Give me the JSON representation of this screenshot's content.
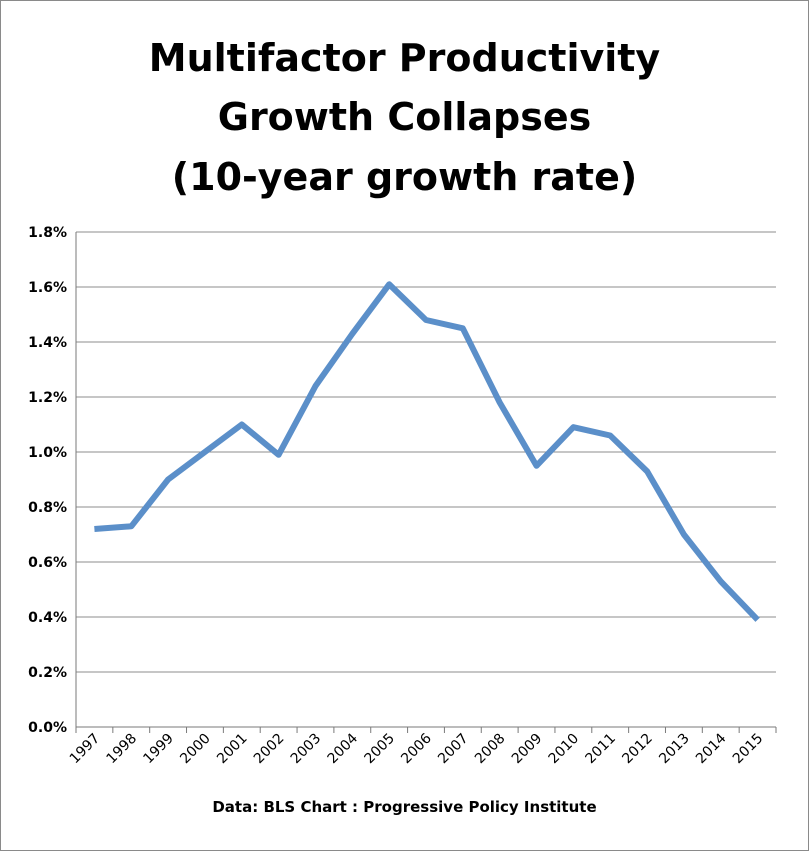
{
  "chart_data": {
    "type": "line",
    "title_lines": [
      "Multifactor Productivity",
      "Growth Collapses",
      "(10-year growth rate)"
    ],
    "xlabel": "",
    "ylabel": "",
    "categories": [
      "1997",
      "1998",
      "1999",
      "2000",
      "2001",
      "2002",
      "2003",
      "2004",
      "2005",
      "2006",
      "2007",
      "2008",
      "2009",
      "2010",
      "2011",
      "2012",
      "2013",
      "2014",
      "2015"
    ],
    "series": [
      {
        "values": [
          0.72,
          0.73,
          0.9,
          1.0,
          1.1,
          0.99,
          1.24,
          1.43,
          1.61,
          1.48,
          1.45,
          1.18,
          0.95,
          1.09,
          1.06,
          0.93,
          0.7,
          0.53,
          0.39
        ]
      }
    ],
    "ylim": [
      0,
      1.8
    ],
    "y_ticks": [
      "0.0%",
      "0.2%",
      "0.4%",
      "0.6%",
      "0.8%",
      "1.0%",
      "1.2%",
      "1.4%",
      "1.6%",
      "1.8%"
    ],
    "y_unit": "%",
    "grid": "horizontal",
    "legend": "none",
    "line_color": "#5b8fc9",
    "grid_color": "#8c8c8c",
    "source_note": "Data: BLS  Chart : Progressive Policy Institute"
  }
}
